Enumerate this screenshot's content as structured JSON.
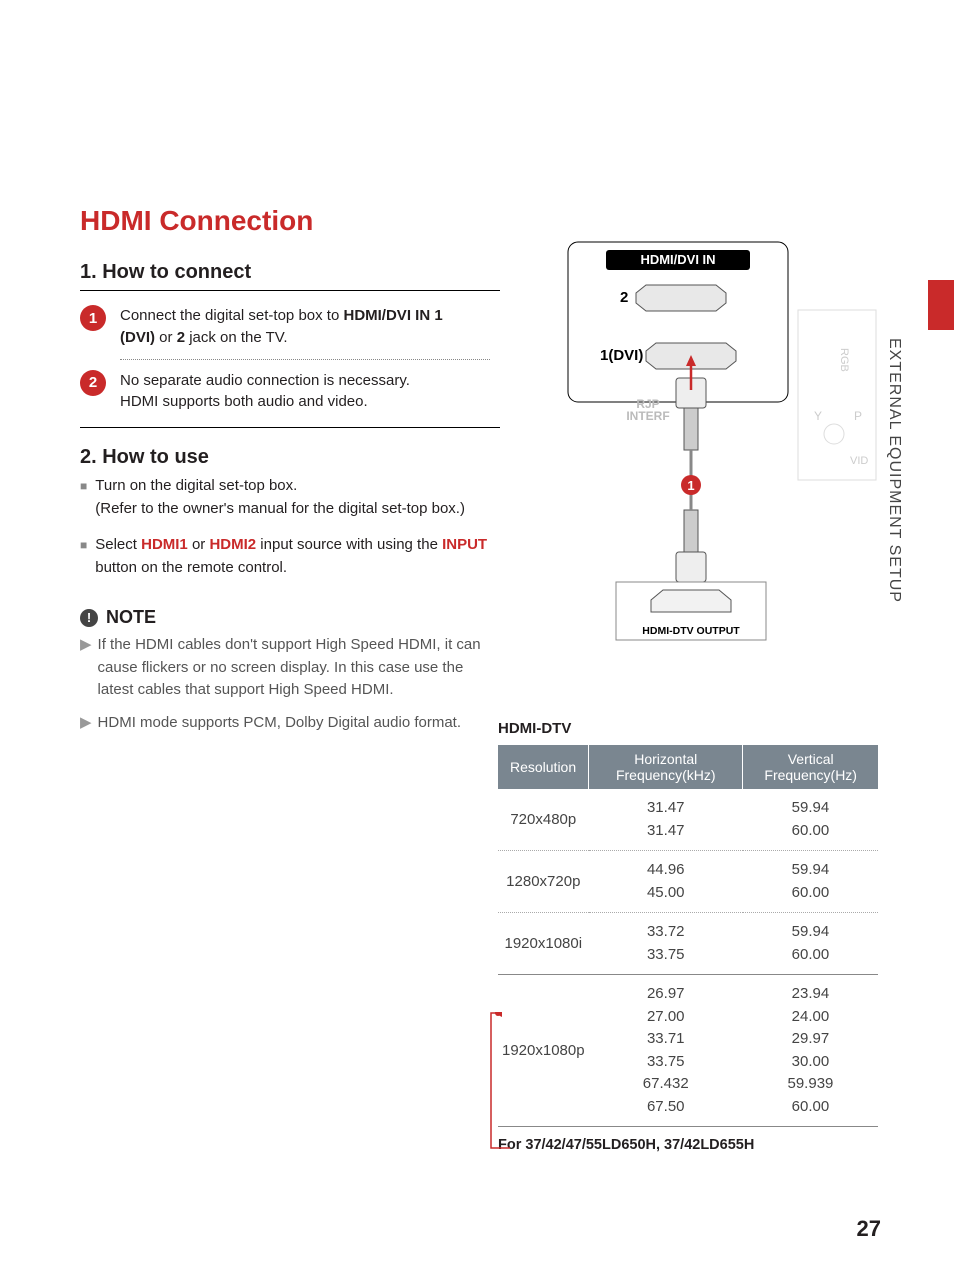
{
  "sideLabel": "EXTERNAL EQUIPMENT SETUP",
  "pageNumber": "27",
  "title": "HDMI Connection",
  "howConnect": {
    "heading": "1. How to connect",
    "steps": [
      {
        "n": "1",
        "pre": "Connect the digital set-top box to ",
        "bold": "HDMI/DVI IN 1 (DVI)",
        "mid": " or ",
        "bold2": "2",
        "post": " jack on the TV."
      },
      {
        "n": "2",
        "line1": "No separate audio connection is necessary.",
        "line2": "HDMI supports both audio and video."
      }
    ]
  },
  "howUse": {
    "heading": "2. How to use",
    "items": [
      {
        "line1": "Turn on the digital set-top box.",
        "line2": "(Refer to the owner's manual for the digital set-top box.)"
      },
      {
        "pre": "Select ",
        "r1": "HDMI1",
        "mid1": " or ",
        "r2": "HDMI2",
        "mid2": " input source with using the ",
        "r3": "INPUT",
        "post": " button on the remote control."
      }
    ]
  },
  "note": {
    "label": "NOTE",
    "items": [
      "If the HDMI cables don't support High Speed HDMI, it can cause flickers or no screen display. In this case use the latest cables that support High Speed HDMI.",
      "HDMI mode supports PCM, Dolby Digital audio format."
    ]
  },
  "diagram": {
    "panelLabel": "HDMI/DVI IN",
    "port2": "2",
    "port1": "1(DVI)",
    "rjp1": "RJP",
    "rjp2": "INTERF",
    "rgb": "RGB",
    "y": "Y",
    "p": "P",
    "vid": "VID",
    "stepBadge": "1",
    "output": "HDMI-DTV OUTPUT"
  },
  "table": {
    "title": "HDMI-DTV",
    "headers": {
      "res": "Resolution",
      "h": "Horizontal Frequency(kHz)",
      "v": "Vertical Frequency(Hz)"
    },
    "rows": [
      {
        "res": "720x480p",
        "h": "31.47\n31.47",
        "v": "59.94\n60.00",
        "sep": "dot"
      },
      {
        "res": "1280x720p",
        "h": "44.96\n45.00",
        "v": "59.94\n60.00",
        "sep": "dot"
      },
      {
        "res": "1920x1080i",
        "h": "33.72\n33.75",
        "v": "59.94\n60.00",
        "sep": "solid"
      },
      {
        "res": "1920x1080p",
        "h": "26.97\n27.00\n33.71\n33.75\n67.432\n67.50",
        "v": "23.94\n24.00\n29.97\n30.00\n59.939\n60.00",
        "sep": "solid"
      }
    ],
    "footer": "For 37/42/47/55LD650H, 37/42LD655H"
  },
  "colors": {
    "accent": "#c92a2a",
    "headerBg": "#7a8690"
  }
}
